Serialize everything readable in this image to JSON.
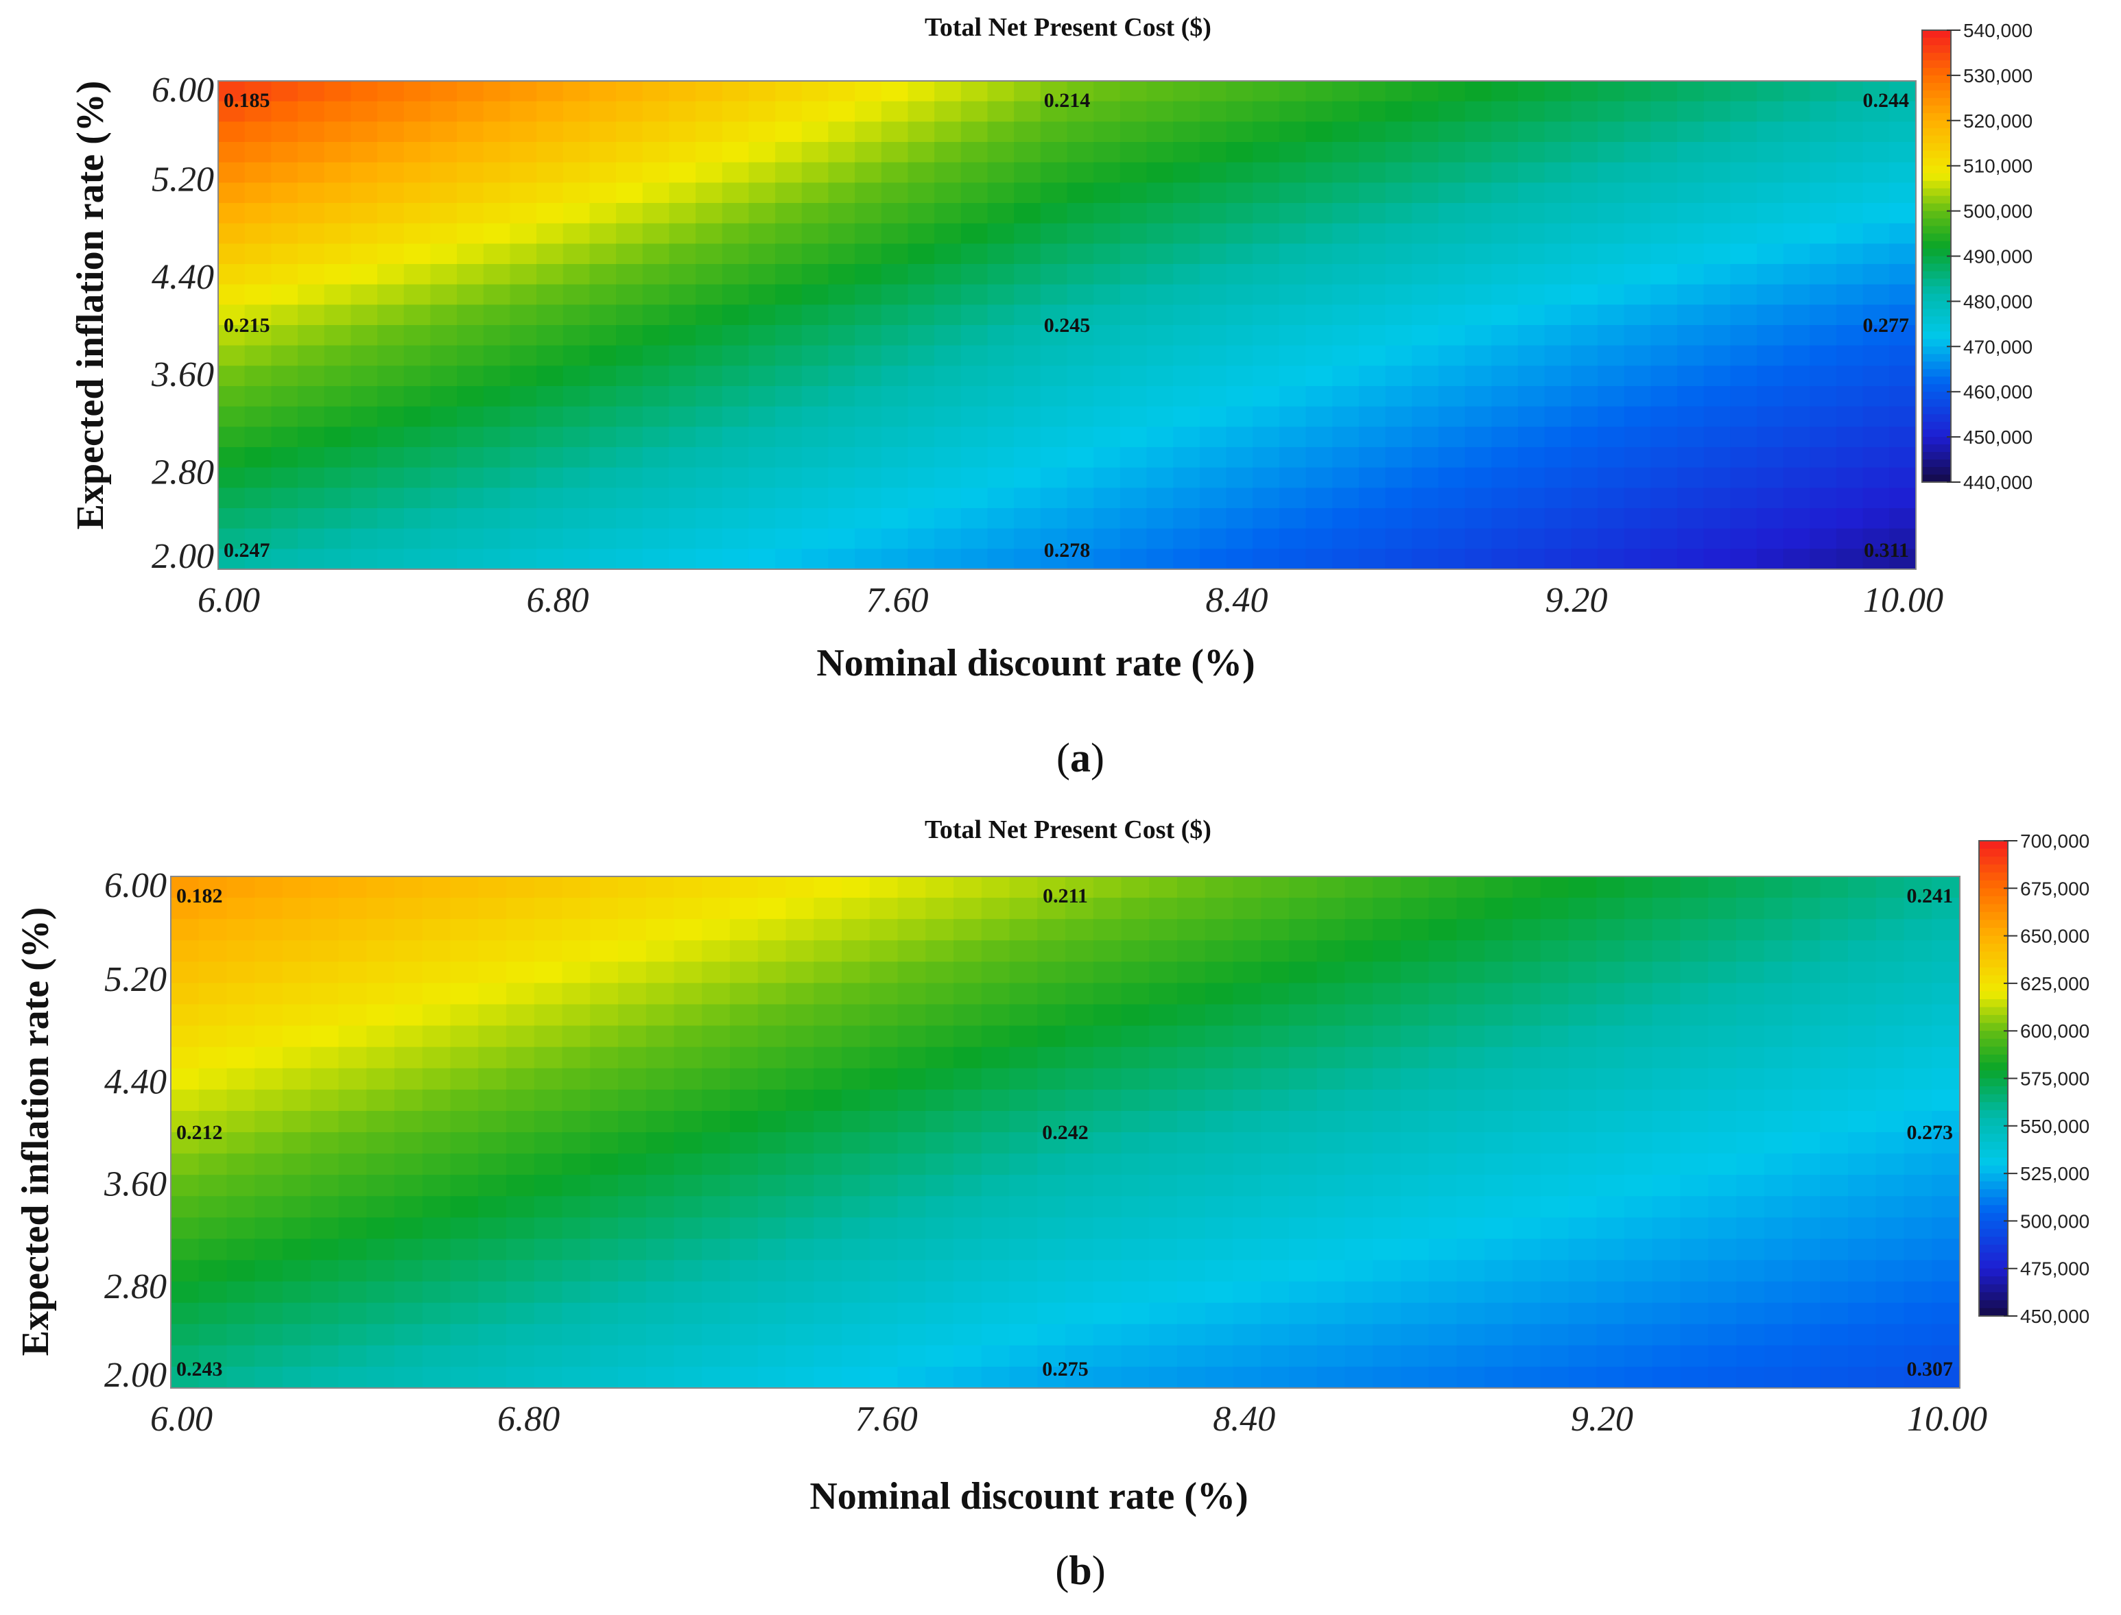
{
  "chart_data": [
    {
      "type": "heatmap",
      "panel_label": "a",
      "title": "Total Net Present Cost ($)",
      "xlabel": "Nominal discount rate (%)",
      "ylabel": "Expected inflation rate (%)",
      "xlim": [
        6.0,
        10.0
      ],
      "ylim": [
        2.0,
        6.0
      ],
      "x_ticks": [
        "6.00",
        "6.80",
        "7.60",
        "8.40",
        "9.20",
        "10.00"
      ],
      "y_ticks": [
        "6.00",
        "5.20",
        "4.40",
        "3.60",
        "2.80",
        "2.00"
      ],
      "colorbar": {
        "min": 440000,
        "max": 540000,
        "ticks": [
          "540,000",
          "530,000",
          "520,000",
          "510,000",
          "500,000",
          "490,000",
          "480,000",
          "470,000",
          "460,000",
          "450,000",
          "440,000"
        ]
      },
      "corner_values": {
        "x": [
          6.0,
          8.0,
          10.0
        ],
        "y": [
          6.0,
          4.0,
          2.0
        ]
      },
      "npc_values": [
        [
          537000,
          502000,
          483000
        ],
        [
          506000,
          481000,
          462000
        ],
        [
          482000,
          465000,
          445000
        ]
      ],
      "point_labels": [
        {
          "x": 6.0,
          "y": 6.0,
          "text": "0.185"
        },
        {
          "x": 8.0,
          "y": 6.0,
          "text": "0.214"
        },
        {
          "x": 10.0,
          "y": 6.0,
          "text": "0.244"
        },
        {
          "x": 6.0,
          "y": 4.0,
          "text": "0.215"
        },
        {
          "x": 8.0,
          "y": 4.0,
          "text": "0.245"
        },
        {
          "x": 10.0,
          "y": 4.0,
          "text": "0.277"
        },
        {
          "x": 6.0,
          "y": 2.0,
          "text": "0.247"
        },
        {
          "x": 8.0,
          "y": 2.0,
          "text": "0.278"
        },
        {
          "x": 10.0,
          "y": 2.0,
          "text": "0.311"
        }
      ]
    },
    {
      "type": "heatmap",
      "panel_label": "b",
      "title": "Total Net Present Cost ($)",
      "xlabel": "Nominal discount rate (%)",
      "ylabel": "Expected inflation rate (%)",
      "xlim": [
        6.0,
        10.0
      ],
      "ylim": [
        2.0,
        6.0
      ],
      "x_ticks": [
        "6.00",
        "6.80",
        "7.60",
        "8.40",
        "9.20",
        "10.00"
      ],
      "y_ticks": [
        "6.00",
        "5.20",
        "4.40",
        "3.60",
        "2.80",
        "2.00"
      ],
      "colorbar": {
        "min": 450000,
        "max": 700000,
        "ticks": [
          "700,000",
          "675,000",
          "650,000",
          "625,000",
          "600,000",
          "575,000",
          "550,000",
          "525,000",
          "500,000",
          "475,000",
          "450,000"
        ]
      },
      "corner_values": {
        "x": [
          6.0,
          8.0,
          10.0
        ],
        "y": [
          6.0,
          4.0,
          2.0
        ]
      },
      "npc_values": [
        [
          660000,
          610000,
          560000
        ],
        [
          610000,
          560000,
          525000
        ],
        [
          560000,
          520000,
          495000
        ]
      ],
      "point_labels": [
        {
          "x": 6.0,
          "y": 6.0,
          "text": "0.182"
        },
        {
          "x": 8.0,
          "y": 6.0,
          "text": "0.211"
        },
        {
          "x": 10.0,
          "y": 6.0,
          "text": "0.241"
        },
        {
          "x": 6.0,
          "y": 4.0,
          "text": "0.212"
        },
        {
          "x": 8.0,
          "y": 4.0,
          "text": "0.242"
        },
        {
          "x": 10.0,
          "y": 4.0,
          "text": "0.273"
        },
        {
          "x": 6.0,
          "y": 2.0,
          "text": "0.243"
        },
        {
          "x": 8.0,
          "y": 2.0,
          "text": "0.275"
        },
        {
          "x": 10.0,
          "y": 2.0,
          "text": "0.307"
        }
      ]
    }
  ]
}
